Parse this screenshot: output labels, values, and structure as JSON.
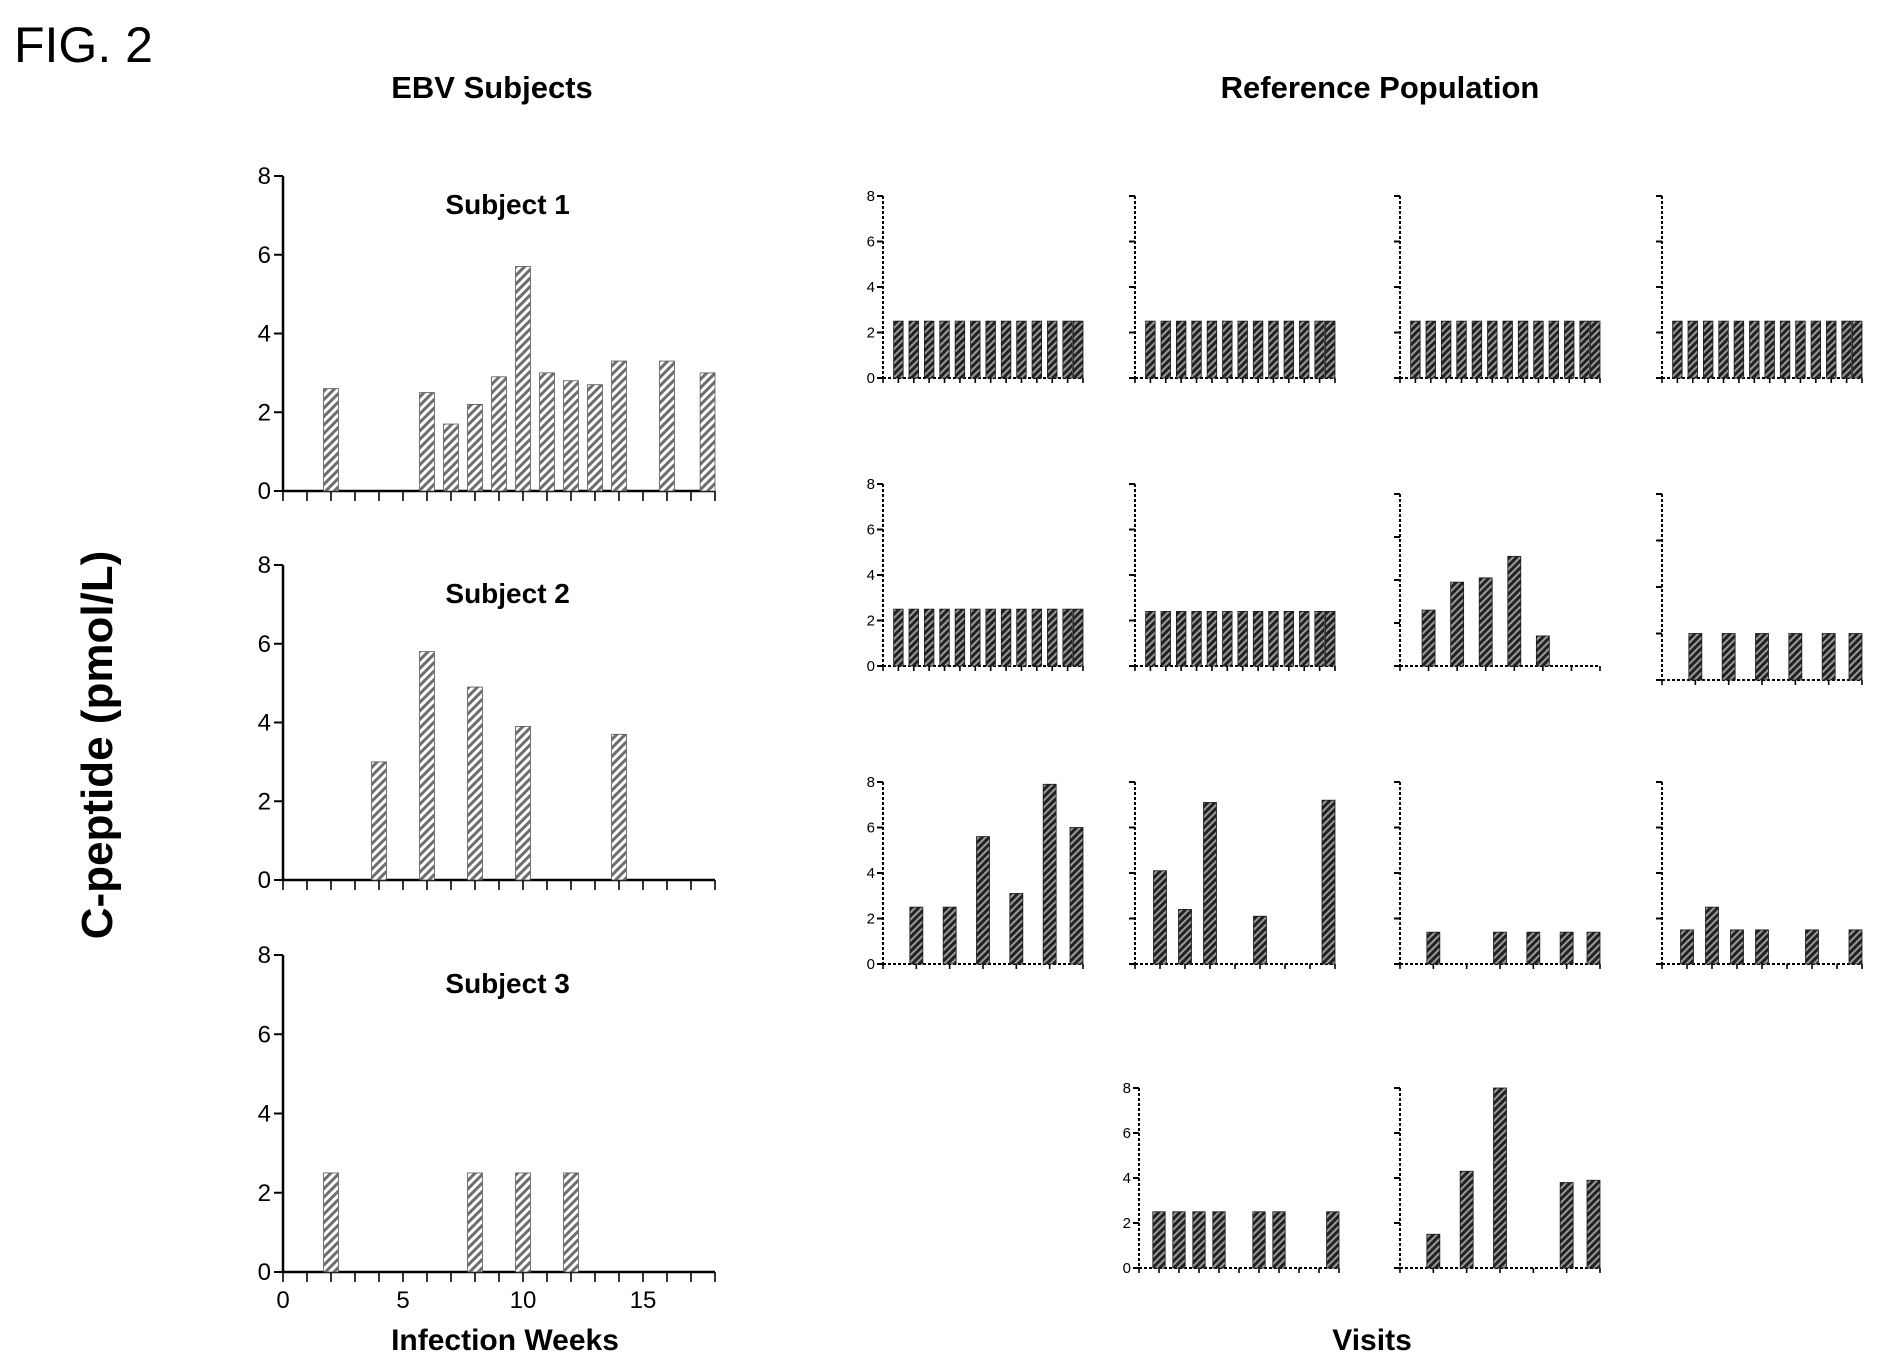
{
  "figure_label": "FIG. 2",
  "headings": {
    "left": "EBV Subjects",
    "right": "Reference Population"
  },
  "y_axis_label": "C-peptide (pmol/L)",
  "x_axis_labels": {
    "left": "Infection Weeks",
    "right": "Visits"
  },
  "colors": {
    "ebv_bar": "#7a7a7a",
    "reference_bar": "#2f2f2f",
    "axis": "#000000"
  },
  "chart_data": [
    {
      "type": "bar",
      "group": "EBV Subjects",
      "title": "Subject 1",
      "ylim": [
        0,
        8
      ],
      "yticks": [
        "0",
        "2",
        "4",
        "6",
        "8"
      ],
      "xlim": [
        0,
        18
      ],
      "xticks": [],
      "x": [
        2,
        6,
        7,
        8,
        9,
        10,
        11,
        12,
        13,
        14,
        16,
        18
      ],
      "values": [
        2.6,
        2.5,
        1.7,
        2.2,
        2.9,
        5.7,
        3.0,
        2.8,
        2.7,
        3.3,
        3.3,
        3.0
      ]
    },
    {
      "type": "bar",
      "group": "EBV Subjects",
      "title": "Subject 2",
      "ylim": [
        0,
        8
      ],
      "yticks": [
        "0",
        "2",
        "4",
        "6",
        "8"
      ],
      "xlim": [
        0,
        18
      ],
      "xticks": [],
      "x": [
        4,
        6,
        8,
        10,
        14
      ],
      "values": [
        3.0,
        5.8,
        4.9,
        3.9,
        3.7
      ]
    },
    {
      "type": "bar",
      "group": "EBV Subjects",
      "title": "Subject 3",
      "ylim": [
        0,
        8
      ],
      "yticks": [
        "0",
        "2",
        "4",
        "6",
        "8"
      ],
      "xlim": [
        0,
        18
      ],
      "xticks": [
        "0",
        "5",
        "10",
        "15"
      ],
      "x": [
        2,
        8,
        10,
        12
      ],
      "values": [
        2.5,
        2.5,
        2.5,
        2.5
      ]
    },
    {
      "type": "bar",
      "group": "Reference Population",
      "ylim": [
        0,
        8
      ],
      "yticks": [
        "0",
        "2",
        "4",
        "6",
        "8"
      ],
      "xlim": [
        0,
        13
      ],
      "x": [
        1,
        2,
        3,
        4,
        5,
        6,
        7,
        8,
        9,
        10,
        11,
        12,
        13
      ],
      "values": [
        2.5,
        2.5,
        2.5,
        2.5,
        2.5,
        2.5,
        2.5,
        2.5,
        2.5,
        2.5,
        2.5,
        2.5,
        2.5
      ]
    },
    {
      "type": "bar",
      "group": "Reference Population",
      "ylim": [
        0,
        8
      ],
      "yticks": [],
      "xlim": [
        0,
        13
      ],
      "x": [
        1,
        2,
        3,
        4,
        5,
        6,
        7,
        8,
        9,
        10,
        11,
        12,
        13
      ],
      "values": [
        2.5,
        2.5,
        2.5,
        2.5,
        2.5,
        2.5,
        2.5,
        2.5,
        2.5,
        2.5,
        2.5,
        2.5,
        2.5
      ]
    },
    {
      "type": "bar",
      "group": "Reference Population",
      "ylim": [
        0,
        8
      ],
      "yticks": [],
      "xlim": [
        0,
        13
      ],
      "x": [
        1,
        2,
        3,
        4,
        5,
        6,
        7,
        8,
        9,
        10,
        11,
        12,
        13
      ],
      "values": [
        2.5,
        2.5,
        2.5,
        2.5,
        2.5,
        2.5,
        2.5,
        2.5,
        2.5,
        2.5,
        2.5,
        2.5,
        2.5
      ]
    },
    {
      "type": "bar",
      "group": "Reference Population",
      "ylim": [
        0,
        8
      ],
      "yticks": [],
      "xlim": [
        0,
        13
      ],
      "x": [
        1,
        2,
        3,
        4,
        5,
        6,
        7,
        8,
        9,
        10,
        11,
        12,
        13
      ],
      "values": [
        2.5,
        2.5,
        2.5,
        2.5,
        2.5,
        2.5,
        2.5,
        2.5,
        2.5,
        2.5,
        2.5,
        2.5,
        2.5
      ]
    },
    {
      "type": "bar",
      "group": "Reference Population",
      "ylim": [
        0,
        8
      ],
      "yticks": [
        "0",
        "2",
        "4",
        "6",
        "8"
      ],
      "xlim": [
        0,
        13
      ],
      "x": [
        1,
        2,
        3,
        4,
        5,
        6,
        7,
        8,
        9,
        10,
        11,
        12,
        13
      ],
      "values": [
        2.5,
        2.5,
        2.5,
        2.5,
        2.5,
        2.5,
        2.5,
        2.5,
        2.5,
        2.5,
        2.5,
        2.5,
        2.5
      ]
    },
    {
      "type": "bar",
      "group": "Reference Population",
      "ylim": [
        0,
        8
      ],
      "yticks": [],
      "xlim": [
        0,
        13
      ],
      "x": [
        1,
        2,
        3,
        4,
        5,
        6,
        7,
        8,
        9,
        10,
        11,
        12,
        13
      ],
      "values": [
        2.4,
        2.4,
        2.4,
        2.4,
        2.4,
        2.4,
        2.4,
        2.4,
        2.4,
        2.4,
        2.4,
        2.4,
        2.4
      ]
    },
    {
      "type": "bar",
      "group": "Reference Population",
      "ylim": [
        0,
        8
      ],
      "yticks": [],
      "xlim": [
        0,
        7
      ],
      "x": [
        1,
        2,
        3,
        4,
        5
      ],
      "values": [
        2.6,
        3.9,
        4.1,
        5.1,
        1.4
      ]
    },
    {
      "type": "bar",
      "group": "Reference Population",
      "ylim": [
        0,
        8
      ],
      "yticks": [],
      "xlim": [
        0,
        6
      ],
      "x": [
        1,
        2,
        3,
        4,
        5,
        6
      ],
      "values": [
        2.0,
        2.0,
        2.0,
        2.0,
        2.0,
        2.0
      ]
    },
    {
      "type": "bar",
      "group": "Reference Population",
      "ylim": [
        0,
        8
      ],
      "yticks": [
        "0",
        "2",
        "4",
        "6",
        "8"
      ],
      "xlim": [
        0,
        6
      ],
      "x": [
        1,
        2,
        3,
        4,
        5,
        6
      ],
      "values": [
        2.5,
        2.5,
        5.6,
        3.1,
        7.9,
        6.0
      ]
    },
    {
      "type": "bar",
      "group": "Reference Population",
      "ylim": [
        0,
        8
      ],
      "yticks": [],
      "xlim": [
        0,
        8
      ],
      "x": [
        1,
        2,
        3,
        5,
        8
      ],
      "values": [
        4.1,
        2.4,
        7.1,
        2.1,
        7.2
      ]
    },
    {
      "type": "bar",
      "group": "Reference Population",
      "ylim": [
        0,
        8
      ],
      "yticks": [],
      "xlim": [
        0,
        6
      ],
      "x": [
        1,
        3,
        4,
        5,
        6
      ],
      "values": [
        1.4,
        1.4,
        1.4,
        1.4,
        1.4
      ]
    },
    {
      "type": "bar",
      "group": "Reference Population",
      "ylim": [
        0,
        8
      ],
      "yticks": [],
      "xlim": [
        0,
        8
      ],
      "x": [
        1,
        2,
        3,
        4,
        6,
        8
      ],
      "values": [
        1.5,
        2.5,
        1.5,
        1.5,
        1.5,
        1.5
      ]
    },
    {
      "type": "bar",
      "group": "Reference Population",
      "ylim": [
        0,
        8
      ],
      "yticks": [
        "0",
        "2",
        "4",
        "6",
        "8"
      ],
      "xlim": [
        0,
        10
      ],
      "x": [
        1,
        2,
        3,
        4,
        6,
        7,
        10
      ],
      "values": [
        2.5,
        2.5,
        2.5,
        2.5,
        2.5,
        2.5,
        2.5
      ]
    },
    {
      "type": "bar",
      "group": "Reference Population",
      "ylim": [
        0,
        8
      ],
      "yticks": [],
      "xlim": [
        0,
        6
      ],
      "x": [
        1,
        2,
        3,
        5,
        6
      ],
      "values": [
        1.5,
        4.3,
        8.0,
        3.8,
        3.9
      ]
    }
  ]
}
